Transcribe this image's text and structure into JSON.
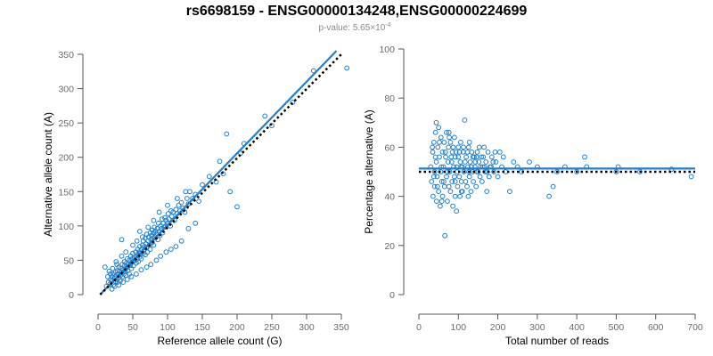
{
  "figure": {
    "title": "rs6698159 - ENSG00000134248,ENSG00000224699",
    "subtitle": "p-value: 5.65×10",
    "subtitle_exponent": "-4"
  },
  "colors": {
    "points": "#1f7fd0",
    "fit_line": "#1f7fd0",
    "reference_line": "#000000",
    "text": "#000000",
    "ticks": "#6b6b6b"
  },
  "chart_data": [
    {
      "type": "scatter",
      "xlabel": "Reference allele count (G)",
      "ylabel": "Alternative allele count (A)",
      "xlim": [
        0,
        350
      ],
      "ylim": [
        0,
        350
      ],
      "xticks": [
        0,
        50,
        100,
        150,
        200,
        250,
        300,
        350
      ],
      "yticks": [
        0,
        50,
        100,
        150,
        200,
        250,
        300,
        350
      ],
      "grid": false,
      "lines": [
        {
          "name": "fit",
          "style": "solid",
          "points": [
            [
              3,
              0
            ],
            [
              343,
              355
            ]
          ]
        },
        {
          "name": "expected",
          "style": "dotted",
          "points": [
            [
              3,
              0
            ],
            [
              350,
              350
            ]
          ]
        }
      ],
      "points": [
        [
          12,
          12
        ],
        [
          15,
          18
        ],
        [
          17,
          15
        ],
        [
          18,
          22
        ],
        [
          20,
          20
        ],
        [
          20,
          26
        ],
        [
          22,
          14
        ],
        [
          22,
          30
        ],
        [
          24,
          24
        ],
        [
          25,
          19
        ],
        [
          25,
          33
        ],
        [
          26,
          27
        ],
        [
          27,
          22
        ],
        [
          28,
          35
        ],
        [
          28,
          18
        ],
        [
          29,
          30
        ],
        [
          30,
          25
        ],
        [
          30,
          40
        ],
        [
          31,
          34
        ],
        [
          32,
          20
        ],
        [
          32,
          28
        ],
        [
          33,
          38
        ],
        [
          34,
          32
        ],
        [
          35,
          26
        ],
        [
          35,
          44
        ],
        [
          36,
          36
        ],
        [
          37,
          30
        ],
        [
          38,
          42
        ],
        [
          38,
          48
        ],
        [
          39,
          34
        ],
        [
          40,
          38
        ],
        [
          40,
          28
        ],
        [
          41,
          46
        ],
        [
          42,
          40
        ],
        [
          42,
          52
        ],
        [
          43,
          35
        ],
        [
          44,
          44
        ],
        [
          45,
          50
        ],
        [
          45,
          30
        ],
        [
          46,
          42
        ],
        [
          47,
          56
        ],
        [
          48,
          46
        ],
        [
          48,
          38
        ],
        [
          49,
          52
        ],
        [
          50,
          48
        ],
        [
          50,
          60
        ],
        [
          51,
          42
        ],
        [
          52,
          54
        ],
        [
          53,
          50
        ],
        [
          54,
          62
        ],
        [
          55,
          46
        ],
        [
          55,
          56
        ],
        [
          56,
          52
        ],
        [
          57,
          66
        ],
        [
          58,
          58
        ],
        [
          58,
          48
        ],
        [
          59,
          62
        ],
        [
          60,
          55
        ],
        [
          60,
          70
        ],
        [
          61,
          60
        ],
        [
          62,
          52
        ],
        [
          63,
          66
        ],
        [
          64,
          72
        ],
        [
          65,
          60
        ],
        [
          65,
          78
        ],
        [
          66,
          64
        ],
        [
          67,
          70
        ],
        [
          68,
          58
        ],
        [
          68,
          82
        ],
        [
          69,
          74
        ],
        [
          70,
          68
        ],
        [
          70,
          88
        ],
        [
          71,
          62
        ],
        [
          72,
          78
        ],
        [
          73,
          84
        ],
        [
          74,
          72
        ],
        [
          75,
          90
        ],
        [
          75,
          66
        ],
        [
          76,
          80
        ],
        [
          77,
          86
        ],
        [
          78,
          76
        ],
        [
          78,
          94
        ],
        [
          79,
          82
        ],
        [
          80,
          90
        ],
        [
          80,
          72
        ],
        [
          81,
          98
        ],
        [
          82,
          84
        ],
        [
          83,
          92
        ],
        [
          84,
          88
        ],
        [
          85,
          96
        ],
        [
          86,
          80
        ],
        [
          87,
          104
        ],
        [
          88,
          92
        ],
        [
          89,
          86
        ],
        [
          90,
          100
        ],
        [
          91,
          96
        ],
        [
          92,
          110
        ],
        [
          93,
          90
        ],
        [
          94,
          104
        ],
        [
          95,
          98
        ],
        [
          96,
          112
        ],
        [
          97,
          100
        ],
        [
          98,
          108
        ],
        [
          100,
          104
        ],
        [
          101,
          118
        ],
        [
          102,
          110
        ],
        [
          104,
          100
        ],
        [
          105,
          122
        ],
        [
          106,
          114
        ],
        [
          108,
          120
        ],
        [
          110,
          108
        ],
        [
          112,
          124
        ],
        [
          114,
          118
        ],
        [
          116,
          130
        ],
        [
          118,
          122
        ],
        [
          120,
          134
        ],
        [
          122,
          126
        ],
        [
          125,
          120
        ],
        [
          128,
          140
        ],
        [
          130,
          132
        ],
        [
          132,
          150
        ],
        [
          136,
          140
        ],
        [
          140,
          146
        ],
        [
          145,
          136
        ],
        [
          150,
          160
        ],
        [
          160,
          172
        ],
        [
          170,
          164
        ],
        [
          175,
          194
        ],
        [
          180,
          176
        ],
        [
          185,
          234
        ],
        [
          190,
          150
        ],
        [
          200,
          128
        ],
        [
          205,
          206
        ],
        [
          210,
          220
        ],
        [
          240,
          260
        ],
        [
          250,
          246
        ],
        [
          280,
          280
        ],
        [
          310,
          326
        ],
        [
          358,
          330
        ],
        [
          20,
          8
        ],
        [
          24,
          12
        ],
        [
          30,
          14
        ],
        [
          36,
          18
        ],
        [
          42,
          22
        ],
        [
          48,
          26
        ],
        [
          55,
          30
        ],
        [
          62,
          36
        ],
        [
          70,
          40
        ],
        [
          76,
          44
        ],
        [
          84,
          50
        ],
        [
          90,
          56
        ],
        [
          98,
          62
        ],
        [
          105,
          66
        ],
        [
          112,
          70
        ],
        [
          120,
          78
        ],
        [
          130,
          96
        ],
        [
          140,
          104
        ],
        [
          10,
          40
        ],
        [
          18,
          30
        ],
        [
          26,
          48
        ],
        [
          34,
          56
        ],
        [
          40,
          62
        ],
        [
          50,
          72
        ],
        [
          56,
          78
        ],
        [
          64,
          84
        ],
        [
          72,
          98
        ],
        [
          80,
          108
        ],
        [
          34,
          80
        ],
        [
          60,
          92
        ],
        [
          88,
          120
        ],
        [
          100,
          130
        ],
        [
          114,
          140
        ],
        [
          126,
          150
        ],
        [
          14,
          26
        ],
        [
          16,
          34
        ],
        [
          21,
          38
        ],
        [
          27,
          44
        ]
      ]
    },
    {
      "type": "scatter",
      "xlabel": "Total number of reads",
      "ylabel": "Percentage alternative (A)",
      "xlim": [
        0,
        700
      ],
      "ylim": [
        0,
        100
      ],
      "xticks": [
        0,
        100,
        200,
        300,
        400,
        500,
        600,
        700
      ],
      "yticks": [
        0,
        20,
        40,
        60,
        80,
        100
      ],
      "grid": false,
      "lines": [
        {
          "name": "fit",
          "style": "solid",
          "points": [
            [
              0,
              51.3
            ],
            [
              700,
              51.3
            ]
          ]
        },
        {
          "name": "expected",
          "style": "dotted",
          "points": [
            [
              0,
              50
            ],
            [
              700,
              50
            ]
          ]
        }
      ],
      "points": [
        [
          30,
          52
        ],
        [
          32,
          46
        ],
        [
          35,
          58
        ],
        [
          36,
          40
        ],
        [
          38,
          62
        ],
        [
          40,
          50
        ],
        [
          40,
          44
        ],
        [
          42,
          66
        ],
        [
          44,
          54
        ],
        [
          45,
          38
        ],
        [
          46,
          48
        ],
        [
          48,
          60
        ],
        [
          50,
          42
        ],
        [
          50,
          68
        ],
        [
          52,
          56
        ],
        [
          54,
          36
        ],
        [
          55,
          50
        ],
        [
          56,
          64
        ],
        [
          58,
          46
        ],
        [
          60,
          58
        ],
        [
          60,
          40
        ],
        [
          62,
          52
        ],
        [
          64,
          62
        ],
        [
          65,
          44
        ],
        [
          66,
          24
        ],
        [
          68,
          56
        ],
        [
          70,
          48
        ],
        [
          70,
          66
        ],
        [
          72,
          38
        ],
        [
          74,
          54
        ],
        [
          75,
          60
        ],
        [
          76,
          44
        ],
        [
          78,
          50
        ],
        [
          80,
          62
        ],
        [
          80,
          42
        ],
        [
          82,
          56
        ],
        [
          84,
          46
        ],
        [
          85,
          58
        ],
        [
          86,
          36
        ],
        [
          88,
          52
        ],
        [
          90,
          64
        ],
        [
          90,
          48
        ],
        [
          92,
          40
        ],
        [
          94,
          58
        ],
        [
          95,
          34
        ],
        [
          96,
          52
        ],
        [
          98,
          44
        ],
        [
          100,
          56
        ],
        [
          100,
          60
        ],
        [
          102,
          48
        ],
        [
          104,
          40
        ],
        [
          105,
          54
        ],
        [
          106,
          62
        ],
        [
          108,
          46
        ],
        [
          110,
          52
        ],
        [
          110,
          42
        ],
        [
          112,
          58
        ],
        [
          114,
          50
        ],
        [
          116,
          71
        ],
        [
          118,
          46
        ],
        [
          120,
          56
        ],
        [
          122,
          44
        ],
        [
          124,
          52
        ],
        [
          125,
          40
        ],
        [
          126,
          60
        ],
        [
          128,
          48
        ],
        [
          130,
          54
        ],
        [
          132,
          42
        ],
        [
          134,
          58
        ],
        [
          136,
          50
        ],
        [
          138,
          46
        ],
        [
          140,
          56
        ],
        [
          142,
          52
        ],
        [
          145,
          44
        ],
        [
          148,
          58
        ],
        [
          150,
          50
        ],
        [
          152,
          54
        ],
        [
          155,
          48
        ],
        [
          158,
          56
        ],
        [
          160,
          46
        ],
        [
          162,
          52
        ],
        [
          165,
          60
        ],
        [
          168,
          50
        ],
        [
          170,
          54
        ],
        [
          172,
          42
        ],
        [
          175,
          58
        ],
        [
          178,
          48
        ],
        [
          180,
          52
        ],
        [
          185,
          56
        ],
        [
          190,
          50
        ],
        [
          195,
          54
        ],
        [
          200,
          48
        ],
        [
          205,
          58
        ],
        [
          210,
          52
        ],
        [
          220,
          50
        ],
        [
          230,
          42
        ],
        [
          240,
          54
        ],
        [
          250,
          52
        ],
        [
          260,
          50
        ],
        [
          280,
          54
        ],
        [
          300,
          52
        ],
        [
          330,
          40
        ],
        [
          340,
          44
        ],
        [
          350,
          50
        ],
        [
          370,
          52
        ],
        [
          400,
          50
        ],
        [
          420,
          56
        ],
        [
          425,
          52
        ],
        [
          500,
          50
        ],
        [
          505,
          52
        ],
        [
          560,
          50
        ],
        [
          640,
          51
        ],
        [
          690,
          48
        ],
        [
          34,
          60
        ],
        [
          38,
          48
        ],
        [
          42,
          56
        ],
        [
          47,
          44
        ],
        [
          52,
          62
        ],
        [
          57,
          52
        ],
        [
          63,
          46
        ],
        [
          67,
          58
        ],
        [
          72,
          50
        ],
        [
          77,
          64
        ],
        [
          83,
          54
        ],
        [
          87,
          60
        ],
        [
          92,
          56
        ],
        [
          97,
          50
        ],
        [
          103,
          58
        ],
        [
          107,
          52
        ],
        [
          113,
          60
        ],
        [
          117,
          54
        ],
        [
          123,
          58
        ],
        [
          127,
          50
        ],
        [
          133,
          52
        ],
        [
          137,
          56
        ],
        [
          143,
          54
        ],
        [
          147,
          50
        ],
        [
          153,
          60
        ],
        [
          157,
          52
        ],
        [
          163,
          56
        ],
        [
          173,
          50
        ],
        [
          183,
          52
        ],
        [
          193,
          58
        ],
        [
          44,
          70
        ],
        [
          58,
          38
        ],
        [
          76,
          66
        ],
        [
          92,
          46
        ],
        [
          108,
          42
        ],
        [
          128,
          62
        ],
        [
          146,
          56
        ],
        [
          166,
          52
        ],
        [
          188,
          54
        ],
        [
          214,
          56
        ]
      ]
    }
  ]
}
